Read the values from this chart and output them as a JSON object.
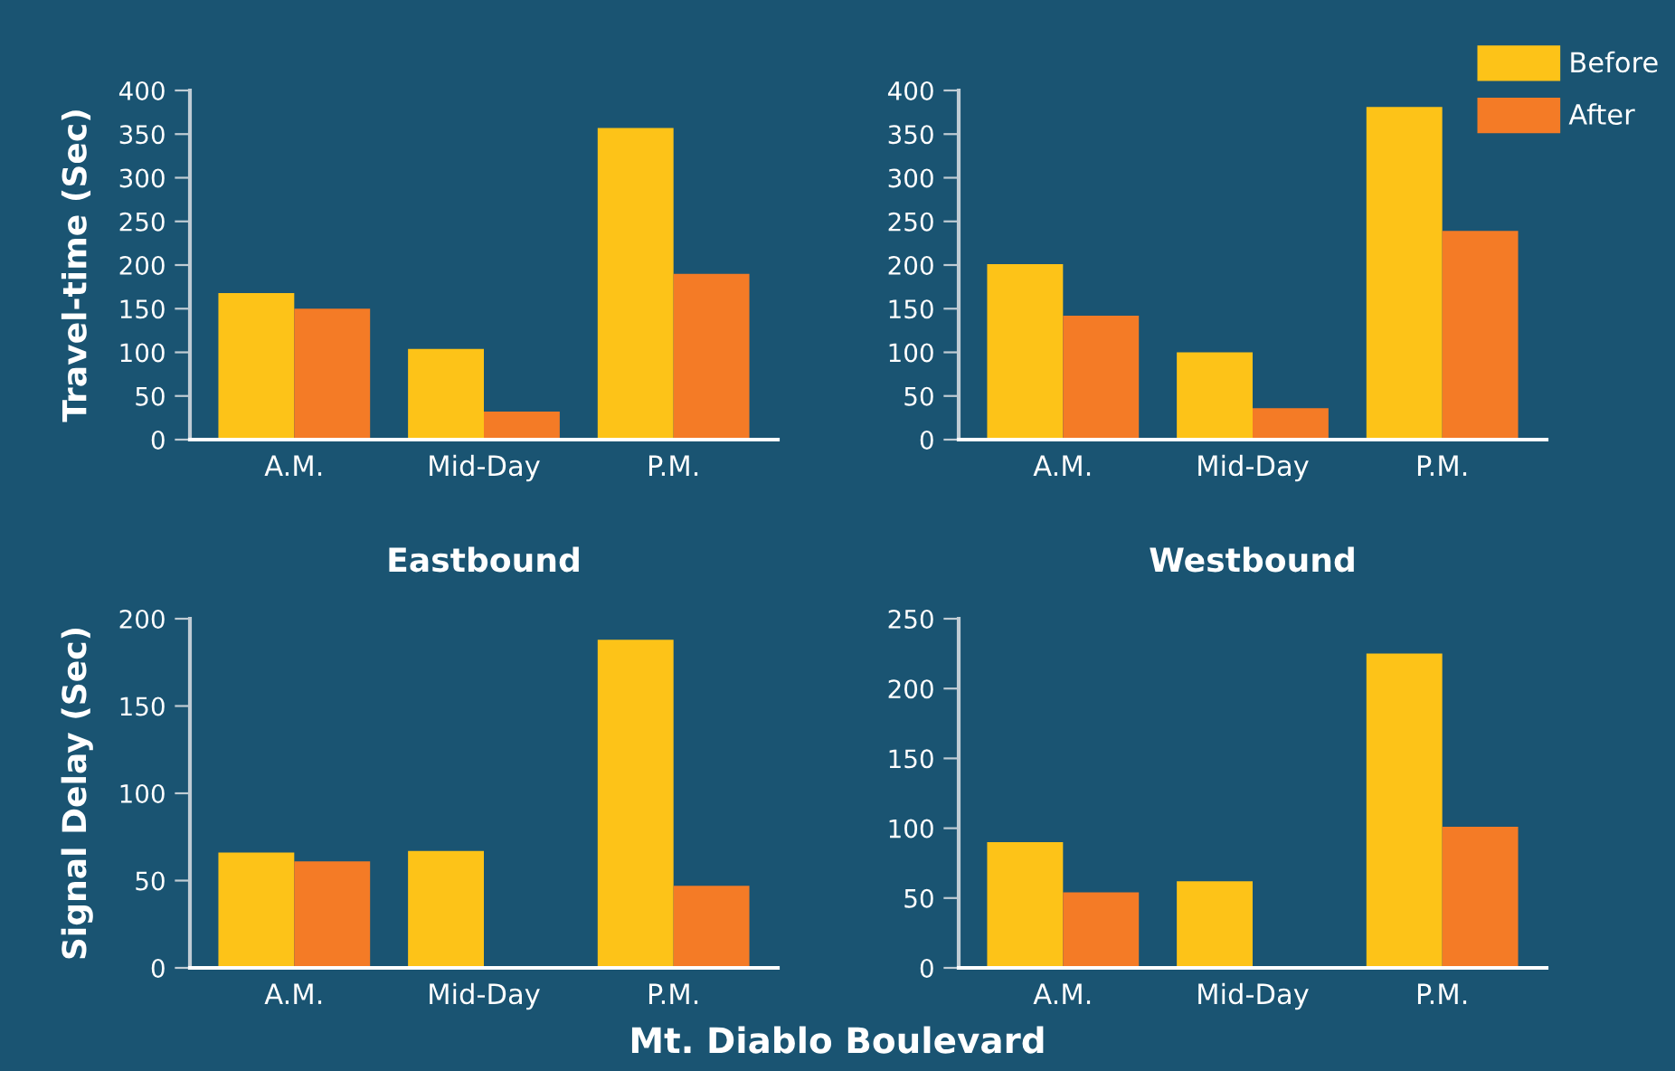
{
  "chart_data": [
    {
      "type": "bar",
      "xlabel": "Eastbound",
      "ylabel": "Travel-time (Sec)",
      "categories": [
        "A.M.",
        "Mid-Day",
        "P.M."
      ],
      "ylim": [
        0,
        400
      ],
      "yticks": [
        0,
        50,
        100,
        150,
        200,
        250,
        300,
        350,
        400
      ],
      "grid": false,
      "legend": false,
      "series": [
        {
          "color": "#fdc318",
          "values": [
            168,
            104,
            357
          ]
        },
        {
          "color": "#f47b26",
          "values": [
            150,
            32,
            190
          ]
        }
      ]
    },
    {
      "type": "bar",
      "xlabel": "Westbound",
      "categories": [
        "A.M.",
        "Mid-Day",
        "P.M."
      ],
      "ylim": [
        0,
        400
      ],
      "yticks": [
        0,
        50,
        100,
        150,
        200,
        250,
        300,
        350,
        400
      ],
      "grid": false,
      "legend": "top right",
      "series": [
        {
          "name": "Before",
          "color": "#fdc318",
          "values": [
            201,
            100,
            381
          ]
        },
        {
          "name": "After",
          "color": "#f47b26",
          "values": [
            142,
            36,
            239
          ]
        }
      ]
    },
    {
      "type": "bar",
      "ylabel": "Signal Delay (Sec)",
      "categories": [
        "A.M.",
        "Mid-Day",
        "P.M."
      ],
      "ylim": [
        0,
        200
      ],
      "yticks": [
        0,
        50,
        100,
        150,
        200
      ],
      "grid": false,
      "legend": false,
      "annotations": [
        "Mt. Diablo Boulevard"
      ],
      "series": [
        {
          "color": "#fdc318",
          "values": [
            66,
            67,
            188
          ]
        },
        {
          "color": "#f47b26",
          "values": [
            61,
            0,
            47
          ]
        }
      ]
    },
    {
      "type": "bar",
      "categories": [
        "A.M.",
        "Mid-Day",
        "P.M."
      ],
      "ylim": [
        0,
        250
      ],
      "yticks": [
        0,
        50,
        100,
        150,
        200,
        250
      ],
      "grid": false,
      "legend": false,
      "series": [
        {
          "color": "#fdc318",
          "values": [
            90,
            62,
            225
          ]
        },
        {
          "color": "#f47b26",
          "values": [
            54,
            0,
            101
          ]
        }
      ]
    }
  ]
}
